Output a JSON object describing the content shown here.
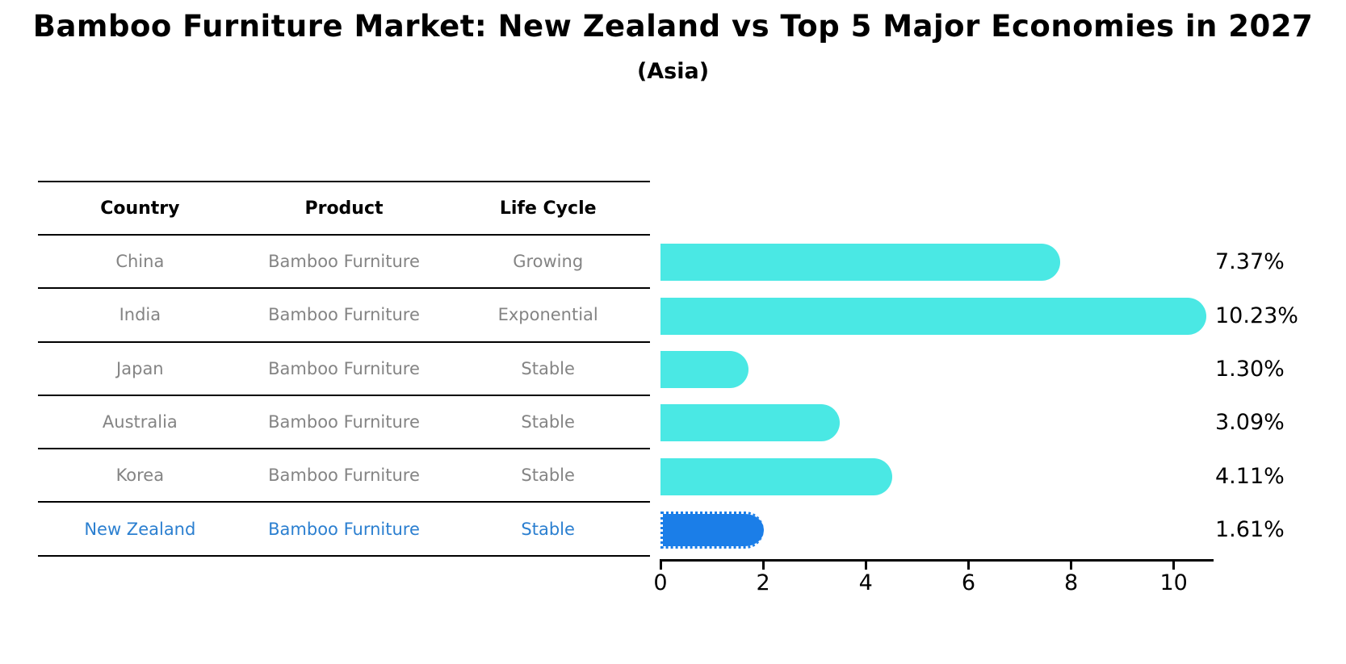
{
  "title": "Bamboo Furniture Market: New Zealand vs Top 5 Major Economies in 2027",
  "subtitle": "(Asia)",
  "colors": {
    "bar_default": "#4AE8E4",
    "bar_highlight": "#1B7EE8",
    "highlight_text": "#2B7FD0",
    "row_text": "#848484",
    "header_text": "#000000"
  },
  "table": {
    "headers": [
      "Country",
      "Product",
      "Life Cycle"
    ],
    "rows": [
      {
        "country": "China",
        "product": "Bamboo Furniture",
        "life_cycle": "Growing",
        "highlight": false
      },
      {
        "country": "India",
        "product": "Bamboo Furniture",
        "life_cycle": "Exponential",
        "highlight": false
      },
      {
        "country": "Japan",
        "product": "Bamboo Furniture",
        "life_cycle": "Stable",
        "highlight": false
      },
      {
        "country": "Australia",
        "product": "Bamboo Furniture",
        "life_cycle": "Stable",
        "highlight": false
      },
      {
        "country": "Korea",
        "product": "Bamboo Furniture",
        "life_cycle": "Stable",
        "highlight": false
      },
      {
        "country": "New Zealand",
        "product": "Bamboo Furniture",
        "life_cycle": "Stable",
        "highlight": true
      }
    ]
  },
  "chart_data": {
    "type": "bar",
    "orientation": "horizontal",
    "title": "Bamboo Furniture Market: New Zealand vs Top 5 Major Economies in 2027 (Asia)",
    "categories": [
      "China",
      "India",
      "Japan",
      "Australia",
      "Korea",
      "New Zealand"
    ],
    "values": [
      7.37,
      10.23,
      1.3,
      3.09,
      4.11,
      1.61
    ],
    "value_labels": [
      "7.37%",
      "10.23%",
      "1.30%",
      "3.09%",
      "4.11%",
      "1.61%"
    ],
    "highlight_category": "New Zealand",
    "xlabel": "",
    "ylabel": "",
    "xlim": [
      0,
      10.76
    ],
    "x_ticks": [
      0,
      2,
      4,
      6,
      8,
      10
    ],
    "grid": false,
    "legend": false
  }
}
